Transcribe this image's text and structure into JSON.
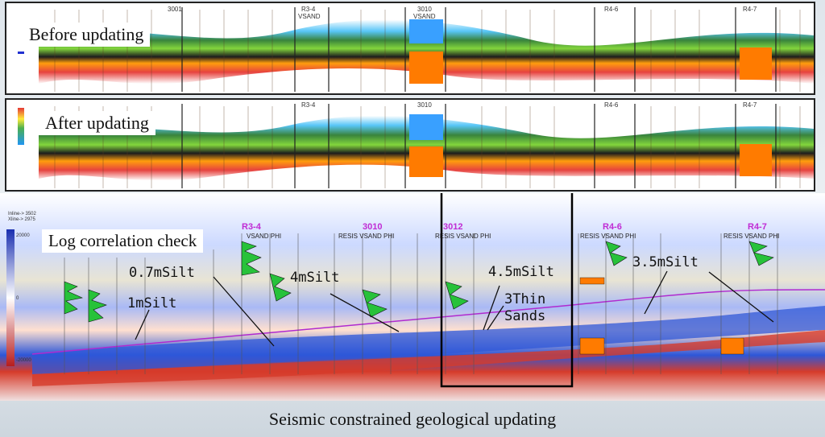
{
  "panels": {
    "before": {
      "label": "Before updating"
    },
    "after": {
      "label": "After updating"
    },
    "log_check": {
      "label": "Log correlation check"
    }
  },
  "top_wells": [
    "3001",
    "R3-4",
    "3010",
    "R4-6",
    "R4-7"
  ],
  "top_track_label": "VSAND",
  "bottom_wells": [
    "R3-4",
    "3010",
    "3012",
    "R4-6",
    "R4-7"
  ],
  "bottom_tracks": {
    "a": "VSAND  PHI",
    "b": "RESIS  VSAND  PHI",
    "c": "RESIS  VSAND  PHI",
    "d": "RESIS  VSAND  PHI",
    "e": "RESIS  VSAND  PHI"
  },
  "inline_info": {
    "inline": "Inline-> 3502",
    "xline": "Xline-> 2975"
  },
  "color_scale": {
    "top": "20000",
    "mid": "0",
    "bottom": "-20000"
  },
  "annotations": {
    "a1": "1mSilt",
    "a2": "0.7mSilt",
    "a3": "4mSilt",
    "a4": "4.5mSilt",
    "a5": "3Thin",
    "a6": "Sands",
    "a7": "3.5mSilt"
  },
  "caption": "Seismic constrained geological updating",
  "colors": {
    "accent": "#c02bd4",
    "border": "#222222"
  }
}
